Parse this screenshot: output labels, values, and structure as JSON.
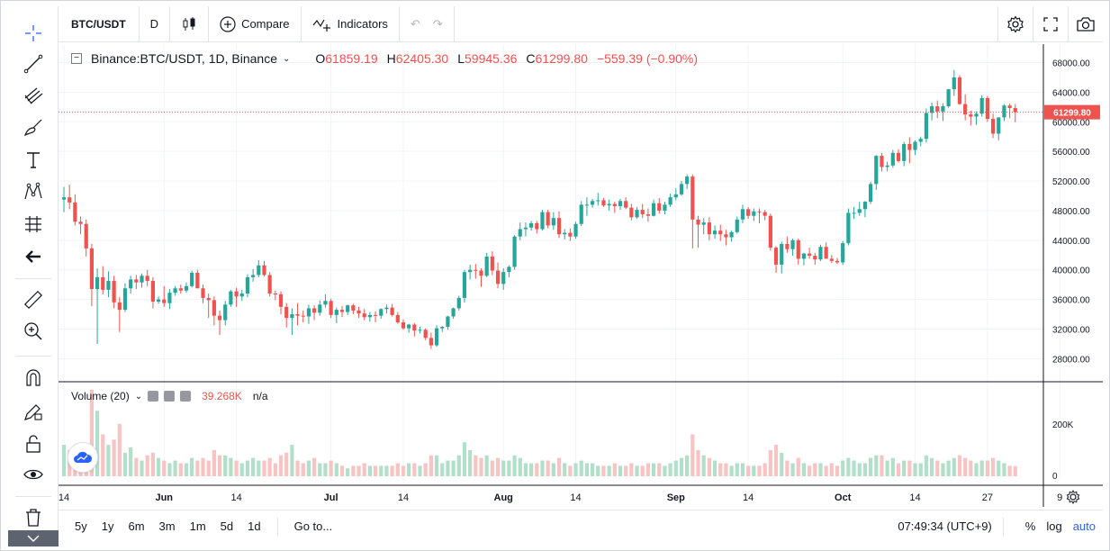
{
  "toolbar": {
    "symbol": "BTC/USDT",
    "interval": "D",
    "compare_label": "Compare",
    "indicators_label": "Indicators"
  },
  "legend": {
    "title": "Binance:BTC/USDT, 1D, Binance",
    "open_key": "O",
    "open": "61859.19",
    "high_key": "H",
    "high": "62405.30",
    "low_key": "L",
    "low": "59945.36",
    "close_key": "C",
    "close": "61299.80",
    "change": "−559.39 (−0.90%)"
  },
  "volume_legend": {
    "title": "Volume (20)",
    "value": "39.268K",
    "ma": "n/a"
  },
  "price_label": "61299.80",
  "bottom": {
    "ranges": [
      "5y",
      "1y",
      "6m",
      "3m",
      "1m",
      "5d",
      "1d"
    ],
    "goto": "Go to...",
    "time": "07:49:34 (UTC+9)",
    "percent": "%",
    "log": "log",
    "auto": "auto"
  },
  "colors": {
    "up": "#26a69a",
    "down": "#ef5350",
    "up_volume": "#b2dfc9",
    "down_volume": "#f7c3c3",
    "accent": "#2962ff"
  },
  "chart_data": {
    "type": "candlestick",
    "symbol": "BTC/USDT",
    "interval": "1D",
    "y_ticks": [
      "68000.00",
      "64000.00",
      "60000.00",
      "56000.00",
      "52000.00",
      "48000.00",
      "44000.00",
      "40000.00",
      "36000.00",
      "32000.00",
      "28000.00"
    ],
    "ylim": [
      25000,
      70500
    ],
    "volume_ticks": [
      "200K",
      "0"
    ],
    "volume_max": 330000,
    "x_ticks": [
      {
        "label": "14",
        "day": 0
      },
      {
        "label": "Jun",
        "day": 18
      },
      {
        "label": "14",
        "day": 31
      },
      {
        "label": "Jul",
        "day": 48
      },
      {
        "label": "14",
        "day": 61
      },
      {
        "label": "Aug",
        "day": 79
      },
      {
        "label": "14",
        "day": 92
      },
      {
        "label": "Sep",
        "day": 110
      },
      {
        "label": "14",
        "day": 123
      },
      {
        "label": "Oct",
        "day": 140
      },
      {
        "label": "14",
        "day": 153
      },
      {
        "label": "27",
        "day": 166
      },
      {
        "label": "9",
        "day": 179
      }
    ],
    "candles": [
      [
        49500,
        51200,
        47800,
        49800,
        120000
      ],
      [
        49800,
        51500,
        48200,
        49100,
        100000
      ],
      [
        49100,
        50200,
        46000,
        46500,
        90000
      ],
      [
        46500,
        47200,
        44800,
        46200,
        70000
      ],
      [
        46200,
        46800,
        41800,
        42900,
        110000
      ],
      [
        42900,
        43500,
        35100,
        37400,
        330000
      ],
      [
        37400,
        40200,
        30000,
        39000,
        250000
      ],
      [
        39000,
        40500,
        36700,
        37300,
        160000
      ],
      [
        37300,
        39800,
        36300,
        38500,
        120000
      ],
      [
        38500,
        39200,
        34800,
        35600,
        140000
      ],
      [
        35600,
        36300,
        31600,
        34600,
        200000
      ],
      [
        34600,
        38200,
        34300,
        37500,
        90000
      ],
      [
        37500,
        39200,
        36800,
        38700,
        110000
      ],
      [
        38700,
        39300,
        37400,
        38300,
        70000
      ],
      [
        38300,
        39500,
        37600,
        39200,
        60000
      ],
      [
        39200,
        40000,
        37800,
        38500,
        80000
      ],
      [
        38500,
        39000,
        34800,
        35700,
        90000
      ],
      [
        35700,
        36400,
        35400,
        36000,
        70000
      ],
      [
        36000,
        37800,
        35000,
        35500,
        60000
      ],
      [
        35500,
        37400,
        34700,
        36900,
        50000
      ],
      [
        36900,
        37800,
        36500,
        37500,
        60000
      ],
      [
        37500,
        38000,
        36800,
        37200,
        50000
      ],
      [
        37200,
        38300,
        36900,
        37800,
        50000
      ],
      [
        37800,
        39900,
        37600,
        39600,
        70000
      ],
      [
        39600,
        40000,
        37700,
        37500,
        60000
      ],
      [
        37500,
        38000,
        35500,
        36200,
        70000
      ],
      [
        36200,
        36800,
        33500,
        35900,
        60000
      ],
      [
        35900,
        36400,
        32500,
        33800,
        100000
      ],
      [
        33800,
        34500,
        31200,
        33200,
        80000
      ],
      [
        33200,
        35800,
        32500,
        35300,
        80000
      ],
      [
        35300,
        37300,
        35000,
        37100,
        70000
      ],
      [
        37100,
        37600,
        35000,
        36400,
        60000
      ],
      [
        36400,
        37300,
        35800,
        36800,
        50000
      ],
      [
        36800,
        39400,
        36300,
        39000,
        60000
      ],
      [
        39000,
        40100,
        38400,
        39300,
        70000
      ],
      [
        39300,
        41300,
        39000,
        40600,
        60000
      ],
      [
        40600,
        41200,
        39100,
        39300,
        60000
      ],
      [
        39300,
        39700,
        36400,
        36800,
        70000
      ],
      [
        36800,
        37200,
        35900,
        36700,
        50000
      ],
      [
        36700,
        37100,
        34000,
        35000,
        80000
      ],
      [
        35000,
        35500,
        32200,
        33500,
        90000
      ],
      [
        33500,
        34800,
        31200,
        34000,
        120000
      ],
      [
        34000,
        35500,
        32500,
        33800,
        60000
      ],
      [
        33800,
        34500,
        32900,
        33700,
        50000
      ],
      [
        33700,
        35300,
        32700,
        34800,
        60000
      ],
      [
        34800,
        35200,
        33200,
        34200,
        70000
      ],
      [
        34200,
        35900,
        33800,
        35300,
        50000
      ],
      [
        35300,
        36700,
        34900,
        35800,
        50000
      ],
      [
        35800,
        36100,
        33500,
        33900,
        60000
      ],
      [
        33900,
        34900,
        32800,
        34600,
        50000
      ],
      [
        34600,
        35100,
        33600,
        34300,
        40000
      ],
      [
        34300,
        35300,
        33900,
        35200,
        30000
      ],
      [
        35200,
        35400,
        34000,
        34500,
        40000
      ],
      [
        34500,
        35000,
        33500,
        34100,
        40000
      ],
      [
        34100,
        34700,
        33200,
        33600,
        50000
      ],
      [
        33600,
        34300,
        33000,
        33900,
        40000
      ],
      [
        33900,
        34400,
        32900,
        33800,
        40000
      ],
      [
        33800,
        34800,
        33400,
        34700,
        40000
      ],
      [
        34700,
        35300,
        34100,
        34900,
        40000
      ],
      [
        34900,
        35400,
        33700,
        33900,
        40000
      ],
      [
        33900,
        34300,
        32700,
        32900,
        50000
      ],
      [
        32900,
        33300,
        31900,
        32100,
        40000
      ],
      [
        32100,
        32700,
        31500,
        32600,
        50000
      ],
      [
        32600,
        32800,
        31000,
        31800,
        50000
      ],
      [
        31800,
        32300,
        31400,
        31900,
        40000
      ],
      [
        31900,
        32100,
        30500,
        30800,
        50000
      ],
      [
        30800,
        31500,
        29300,
        29800,
        80000
      ],
      [
        29800,
        32500,
        29600,
        32100,
        80000
      ],
      [
        32100,
        32400,
        31600,
        32300,
        50000
      ],
      [
        32300,
        33800,
        31900,
        33700,
        60000
      ],
      [
        33700,
        34900,
        33400,
        34800,
        60000
      ],
      [
        34800,
        36500,
        34500,
        36200,
        80000
      ],
      [
        36200,
        40000,
        35600,
        39700,
        130000
      ],
      [
        39700,
        40700,
        38700,
        40000,
        100000
      ],
      [
        40000,
        40800,
        38800,
        39900,
        80000
      ],
      [
        39900,
        40200,
        37700,
        39200,
        70000
      ],
      [
        39200,
        42300,
        39000,
        41800,
        80000
      ],
      [
        41800,
        42500,
        39300,
        39900,
        60000
      ],
      [
        39900,
        41000,
        37500,
        38100,
        70000
      ],
      [
        38100,
        40200,
        37300,
        39700,
        60000
      ],
      [
        39700,
        40600,
        39000,
        40400,
        60000
      ],
      [
        40400,
        44700,
        40000,
        44500,
        80000
      ],
      [
        44500,
        46400,
        44000,
        45500,
        70000
      ],
      [
        45500,
        46400,
        44500,
        45700,
        50000
      ],
      [
        45700,
        46600,
        45300,
        46300,
        50000
      ],
      [
        46300,
        46600,
        44900,
        45500,
        50000
      ],
      [
        45500,
        48100,
        45300,
        47800,
        60000
      ],
      [
        47800,
        48100,
        45600,
        46000,
        60000
      ],
      [
        46000,
        47800,
        45400,
        47000,
        50000
      ],
      [
        47000,
        47900,
        44300,
        44800,
        70000
      ],
      [
        44800,
        45500,
        44100,
        45000,
        50000
      ],
      [
        45000,
        45600,
        43900,
        44500,
        40000
      ],
      [
        44500,
        46500,
        44200,
        46200,
        50000
      ],
      [
        46200,
        49300,
        45900,
        48800,
        60000
      ],
      [
        48800,
        49800,
        47300,
        48800,
        50000
      ],
      [
        48800,
        49600,
        48400,
        49300,
        50000
      ],
      [
        49300,
        50400,
        48700,
        49400,
        40000
      ],
      [
        49400,
        49700,
        48500,
        48700,
        40000
      ],
      [
        48700,
        49500,
        48000,
        48900,
        40000
      ],
      [
        48900,
        49200,
        47700,
        48600,
        50000
      ],
      [
        48600,
        49600,
        48100,
        49300,
        40000
      ],
      [
        49300,
        49800,
        48200,
        48400,
        40000
      ],
      [
        48400,
        48900,
        46700,
        47100,
        50000
      ],
      [
        47100,
        48500,
        46900,
        48100,
        40000
      ],
      [
        48100,
        48900,
        47000,
        47500,
        40000
      ],
      [
        47500,
        48300,
        46500,
        47300,
        50000
      ],
      [
        47300,
        49500,
        47200,
        49000,
        50000
      ],
      [
        49000,
        49700,
        47600,
        48000,
        50000
      ],
      [
        48000,
        49200,
        47500,
        48800,
        40000
      ],
      [
        48800,
        50300,
        48500,
        49800,
        50000
      ],
      [
        49800,
        51000,
        49400,
        50200,
        60000
      ],
      [
        50200,
        52000,
        50000,
        51600,
        70000
      ],
      [
        51600,
        52900,
        50900,
        52600,
        80000
      ],
      [
        52600,
        52900,
        42900,
        46800,
        160000
      ],
      [
        46800,
        47300,
        43000,
        46100,
        100000
      ],
      [
        46100,
        47000,
        44800,
        46400,
        80000
      ],
      [
        46400,
        47100,
        44000,
        44800,
        70000
      ],
      [
        44800,
        46000,
        44200,
        45300,
        60000
      ],
      [
        45300,
        46100,
        43900,
        44800,
        50000
      ],
      [
        44800,
        45400,
        43300,
        44400,
        50000
      ],
      [
        44400,
        45300,
        43800,
        45100,
        40000
      ],
      [
        45100,
        47200,
        44900,
        46800,
        50000
      ],
      [
        46800,
        48800,
        46300,
        48200,
        50000
      ],
      [
        48200,
        48500,
        46900,
        47300,
        40000
      ],
      [
        47300,
        48300,
        46600,
        47900,
        40000
      ],
      [
        47900,
        48300,
        46300,
        47800,
        40000
      ],
      [
        47800,
        48100,
        46700,
        47300,
        50000
      ],
      [
        47300,
        47600,
        42600,
        43000,
        100000
      ],
      [
        43000,
        43200,
        39600,
        40700,
        120000
      ],
      [
        40700,
        43800,
        39500,
        43500,
        90000
      ],
      [
        43500,
        44500,
        42300,
        42800,
        60000
      ],
      [
        42800,
        44200,
        41900,
        44000,
        50000
      ],
      [
        44000,
        44200,
        40700,
        41500,
        70000
      ],
      [
        41500,
        42300,
        40600,
        42200,
        50000
      ],
      [
        42200,
        43000,
        41500,
        41900,
        40000
      ],
      [
        41900,
        42300,
        40700,
        41400,
        50000
      ],
      [
        41400,
        43400,
        41200,
        43100,
        50000
      ],
      [
        43100,
        43700,
        41600,
        41500,
        40000
      ],
      [
        41500,
        42000,
        40900,
        41200,
        50000
      ],
      [
        41200,
        41600,
        40800,
        41000,
        40000
      ],
      [
        41000,
        43900,
        40700,
        43600,
        60000
      ],
      [
        43600,
        48300,
        43300,
        47700,
        70000
      ],
      [
        47700,
        48500,
        46900,
        47700,
        60000
      ],
      [
        47700,
        49200,
        47300,
        48200,
        50000
      ],
      [
        48200,
        49300,
        47100,
        49200,
        50000
      ],
      [
        49200,
        51900,
        48900,
        51600,
        70000
      ],
      [
        51600,
        55500,
        50800,
        55400,
        80000
      ],
      [
        55400,
        55800,
        53300,
        53900,
        80000
      ],
      [
        53900,
        54600,
        53300,
        54100,
        60000
      ],
      [
        54100,
        56200,
        53800,
        55800,
        70000
      ],
      [
        55800,
        56300,
        54500,
        54700,
        50000
      ],
      [
        54700,
        57300,
        54000,
        57000,
        60000
      ],
      [
        57000,
        57900,
        54400,
        56200,
        60000
      ],
      [
        56200,
        57500,
        55500,
        57300,
        50000
      ],
      [
        57300,
        58000,
        56700,
        57700,
        50000
      ],
      [
        57700,
        61800,
        57200,
        61200,
        80000
      ],
      [
        61200,
        62600,
        60200,
        62100,
        70000
      ],
      [
        62100,
        62900,
        60500,
        61400,
        60000
      ],
      [
        61400,
        62500,
        60100,
        62100,
        50000
      ],
      [
        62100,
        64400,
        61900,
        64400,
        60000
      ],
      [
        64400,
        67000,
        63500,
        66000,
        70000
      ],
      [
        66000,
        66300,
        62300,
        62400,
        80000
      ],
      [
        62400,
        63700,
        60200,
        61000,
        70000
      ],
      [
        61000,
        61500,
        59500,
        60700,
        60000
      ],
      [
        60700,
        61400,
        59600,
        61100,
        50000
      ],
      [
        61100,
        63600,
        60700,
        63200,
        60000
      ],
      [
        63200,
        63500,
        60000,
        60400,
        60000
      ],
      [
        60400,
        61100,
        57800,
        58400,
        70000
      ],
      [
        58400,
        60600,
        57500,
        60600,
        60000
      ],
      [
        60600,
        62400,
        60100,
        62200,
        50000
      ],
      [
        62200,
        62500,
        60500,
        61860,
        40000
      ],
      [
        61860,
        62405,
        59945,
        61300,
        39268
      ]
    ]
  }
}
